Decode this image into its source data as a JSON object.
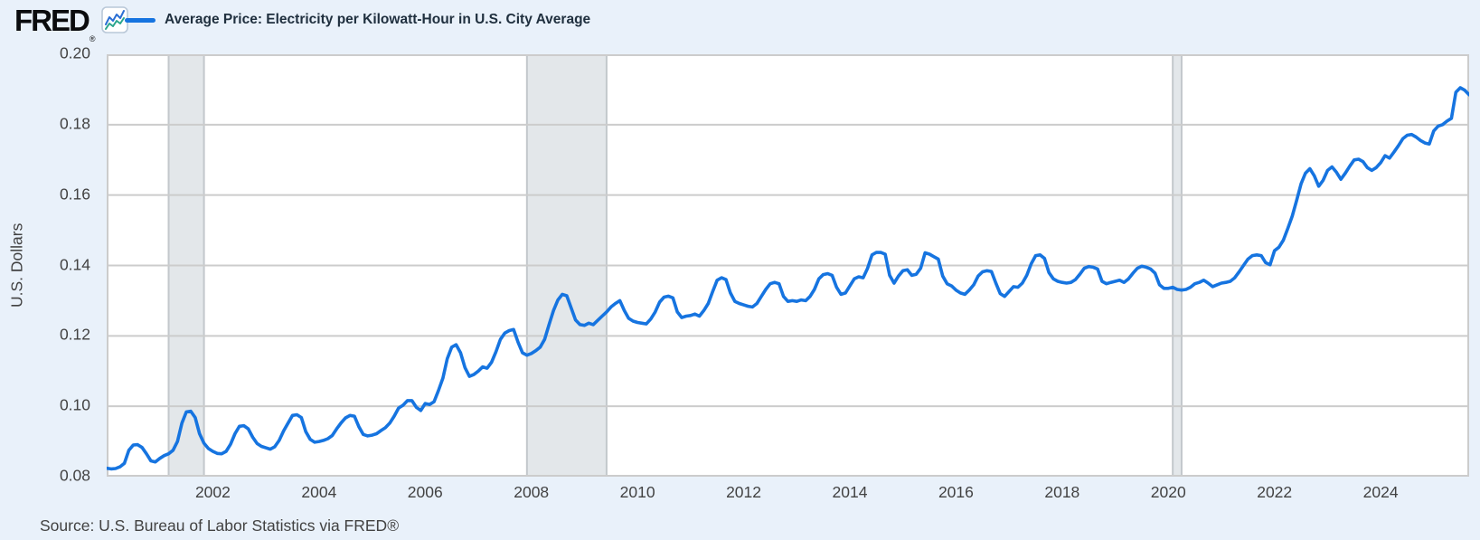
{
  "header": {
    "logo": "FRED",
    "registered_mark": "®",
    "legend": {
      "series_label": "Average Price: Electricity per Kilowatt-Hour in U.S. City Average"
    }
  },
  "source": {
    "text": "Source: U.S. Bureau of Labor Statistics via FRED®"
  },
  "colors": {
    "page_bg": "#e9f1fa",
    "plot_bg": "#ffffff",
    "grid": "#cccccc",
    "axis_line": "#bfbfbf",
    "line": "#1674e0",
    "band_fill": "#e3e7ea",
    "band_edge": "#c3c8cc",
    "tick_text": "#424242",
    "fred_icon_blue": "#2b6fd4",
    "fred_icon_teal": "#2aa58c"
  },
  "chart_data": {
    "type": "line",
    "title": "Average Price: Electricity per Kilowatt-Hour in U.S. City Average",
    "xlabel": "",
    "ylabel": "U.S. Dollars",
    "x_start": 2000.0,
    "x_end": 2025.667,
    "ylim": [
      0.08,
      0.2
    ],
    "grid": true,
    "legend_position": "top-left",
    "x_ticks": [
      2002,
      2004,
      2006,
      2008,
      2010,
      2012,
      2014,
      2016,
      2018,
      2020,
      2022,
      2024
    ],
    "y_ticks": [
      0.08,
      0.1,
      0.12,
      0.14,
      0.16,
      0.18,
      0.2
    ],
    "recession_bands": [
      {
        "start": 2001.167,
        "end": 2001.833
      },
      {
        "start": 2007.917,
        "end": 2009.417
      },
      {
        "start": 2020.083,
        "end": 2020.25
      }
    ],
    "series": [
      {
        "name": "Average Price: Electricity per Kilowatt-Hour in U.S. City Average",
        "units": "U.S. Dollars",
        "frequency": "monthly",
        "start_year": 2000.0,
        "values": [
          0.0824,
          0.0822,
          0.0823,
          0.0828,
          0.0838,
          0.0875,
          0.089,
          0.0891,
          0.0883,
          0.0865,
          0.0845,
          0.0842,
          0.0852,
          0.086,
          0.0865,
          0.0875,
          0.09,
          0.0952,
          0.0984,
          0.0986,
          0.0968,
          0.0922,
          0.0895,
          0.088,
          0.0872,
          0.0866,
          0.0865,
          0.0872,
          0.0892,
          0.0922,
          0.0943,
          0.0945,
          0.0936,
          0.0912,
          0.0894,
          0.0886,
          0.0882,
          0.0878,
          0.0885,
          0.0903,
          0.093,
          0.0952,
          0.0974,
          0.0976,
          0.0968,
          0.0928,
          0.0906,
          0.0898,
          0.09,
          0.0903,
          0.0908,
          0.0917,
          0.0936,
          0.0953,
          0.0967,
          0.0974,
          0.0972,
          0.0942,
          0.092,
          0.0916,
          0.0918,
          0.0922,
          0.0931,
          0.0939,
          0.0952,
          0.0972,
          0.0995,
          0.1003,
          0.1016,
          0.1016,
          0.0997,
          0.0988,
          0.1008,
          0.1005,
          0.1013,
          0.1045,
          0.108,
          0.1135,
          0.1168,
          0.1175,
          0.1152,
          0.111,
          0.1085,
          0.109,
          0.11,
          0.1112,
          0.1108,
          0.1125,
          0.1155,
          0.119,
          0.1208,
          0.1215,
          0.1218,
          0.1182,
          0.1152,
          0.1145,
          0.115,
          0.1158,
          0.1168,
          0.119,
          0.1232,
          0.1272,
          0.1302,
          0.1318,
          0.1314,
          0.128,
          0.1245,
          0.1232,
          0.123,
          0.1236,
          0.1232,
          0.1244,
          0.1256,
          0.1268,
          0.1282,
          0.1292,
          0.13,
          0.1272,
          0.125,
          0.1242,
          0.1238,
          0.1236,
          0.1234,
          0.1248,
          0.1268,
          0.1296,
          0.131,
          0.1313,
          0.1308,
          0.1268,
          0.1252,
          0.1256,
          0.1258,
          0.1262,
          0.1256,
          0.1272,
          0.1292,
          0.1326,
          0.1358,
          0.1365,
          0.136,
          0.1322,
          0.1298,
          0.1292,
          0.1288,
          0.1284,
          0.1282,
          0.1292,
          0.1312,
          0.1332,
          0.1348,
          0.1352,
          0.1348,
          0.1312,
          0.1298,
          0.13,
          0.1298,
          0.1302,
          0.13,
          0.1312,
          0.1332,
          0.1362,
          0.1374,
          0.1377,
          0.1372,
          0.1338,
          0.1318,
          0.1322,
          0.1342,
          0.1362,
          0.1368,
          0.1365,
          0.1392,
          0.143,
          0.1437,
          0.1437,
          0.1432,
          0.1372,
          0.135,
          0.137,
          0.1385,
          0.1388,
          0.1372,
          0.1375,
          0.1392,
          0.1436,
          0.1432,
          0.1425,
          0.1418,
          0.137,
          0.1348,
          0.1342,
          0.133,
          0.1322,
          0.1318,
          0.133,
          0.1345,
          0.137,
          0.1382,
          0.1385,
          0.1383,
          0.135,
          0.132,
          0.1312,
          0.1326,
          0.134,
          0.1338,
          0.135,
          0.1372,
          0.1405,
          0.1428,
          0.143,
          0.142,
          0.138,
          0.1362,
          0.1355,
          0.1352,
          0.135,
          0.1352,
          0.136,
          0.1375,
          0.1392,
          0.1397,
          0.1395,
          0.139,
          0.1355,
          0.1348,
          0.1352,
          0.1355,
          0.1358,
          0.1352,
          0.1362,
          0.1378,
          0.1392,
          0.1398,
          0.1395,
          0.139,
          0.1378,
          0.1345,
          0.1335,
          0.1335,
          0.1338,
          0.1332,
          0.133,
          0.1332,
          0.1338,
          0.1348,
          0.1352,
          0.1358,
          0.135,
          0.134,
          0.1345,
          0.135,
          0.1352,
          0.1355,
          0.1365,
          0.1382,
          0.14,
          0.1418,
          0.1428,
          0.143,
          0.1428,
          0.1408,
          0.1402,
          0.1442,
          0.1452,
          0.1472,
          0.1505,
          0.154,
          0.1585,
          0.1632,
          0.1662,
          0.1675,
          0.1655,
          0.1625,
          0.1642,
          0.167,
          0.168,
          0.1665,
          0.1645,
          0.1662,
          0.1682,
          0.17,
          0.1702,
          0.1695,
          0.1678,
          0.167,
          0.1678,
          0.1692,
          0.1712,
          0.1705,
          0.1722,
          0.174,
          0.176,
          0.177,
          0.1772,
          0.1765,
          0.1755,
          0.1748,
          0.1745,
          0.1782,
          0.1796,
          0.18,
          0.181,
          0.1818,
          0.1892,
          0.1905,
          0.1898,
          0.1885
        ]
      }
    ]
  }
}
